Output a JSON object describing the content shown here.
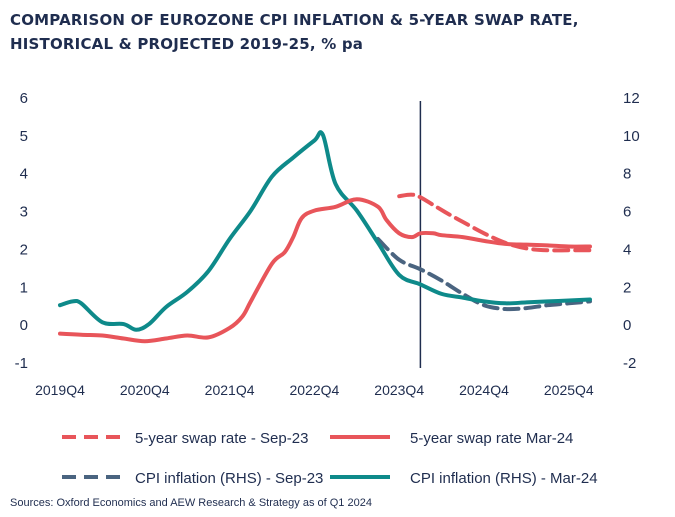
{
  "title": "COMPARISON OF EUROZONE CPI INFLATION & 5-YEAR SWAP RATE, HISTORICAL & PROJECTED 2019-25, % pa",
  "source": "Sources: Oxford Economics and AEW Research & Strategy as of Q1 2024",
  "colors": {
    "swap": "#e8555a",
    "cpi": "#0e8a8a",
    "cpi_dashed": "#4a6480",
    "axis": "#1f2d4f"
  },
  "chart_data": {
    "type": "line",
    "title": "COMPARISON OF EUROZONE CPI INFLATION & 5-YEAR SWAP RATE, HISTORICAL & PROJECTED 2019-25, % pa",
    "x_ticks": [
      "2019Q4",
      "2020Q4",
      "2021Q4",
      "2022Q4",
      "2023Q4",
      "2024Q4",
      "2025Q4"
    ],
    "ylim_left": [
      -1,
      6
    ],
    "yticks_left": [
      -1,
      0,
      1,
      2,
      3,
      4,
      5,
      6
    ],
    "ylim_right": [
      -2,
      12
    ],
    "yticks_right": [
      -2,
      0,
      2,
      4,
      6,
      8,
      10,
      12
    ],
    "vertical_line_x": 2024.0,
    "grid": false,
    "legend_position": "bottom",
    "series": [
      {
        "name": "5-year swap rate - Sep-23",
        "axis": "left",
        "style": "dashed",
        "x": [
          2023.75,
          2023.9,
          2024.0,
          2024.15,
          2024.3,
          2024.5,
          2024.75,
          2025.0,
          2025.25,
          2025.5,
          2025.75,
          2026.0
        ],
        "y": [
          3.38,
          3.42,
          3.35,
          3.15,
          2.95,
          2.7,
          2.4,
          2.15,
          2.0,
          1.95,
          1.95,
          1.95
        ]
      },
      {
        "name": "5-year swap rate Mar-24",
        "axis": "left",
        "style": "solid",
        "x": [
          2019.75,
          2020.0,
          2020.25,
          2020.5,
          2020.75,
          2021.0,
          2021.25,
          2021.5,
          2021.75,
          2021.9,
          2022.0,
          2022.25,
          2022.4,
          2022.5,
          2022.6,
          2022.75,
          2023.0,
          2023.25,
          2023.5,
          2023.6,
          2023.75,
          2023.9,
          2024.0,
          2024.15,
          2024.25,
          2024.5,
          2024.75,
          2025.0,
          2025.25,
          2025.5,
          2025.75,
          2026.0
        ],
        "y": [
          -0.25,
          -0.28,
          -0.3,
          -0.38,
          -0.45,
          -0.38,
          -0.3,
          -0.35,
          -0.1,
          0.2,
          0.6,
          1.6,
          1.9,
          2.3,
          2.8,
          3.0,
          3.1,
          3.3,
          3.1,
          2.75,
          2.4,
          2.3,
          2.4,
          2.4,
          2.35,
          2.3,
          2.2,
          2.12,
          2.1,
          2.08,
          2.05,
          2.05
        ]
      },
      {
        "name": "CPI inflation (RHS) - Sep-23",
        "axis": "right",
        "style": "dashed",
        "x": [
          2023.5,
          2023.75,
          2024.0,
          2024.25,
          2024.5,
          2024.75,
          2025.0,
          2025.25,
          2025.5,
          2025.75,
          2026.0
        ],
        "y": [
          4.5,
          3.4,
          2.9,
          2.3,
          1.6,
          1.0,
          0.8,
          0.85,
          1.0,
          1.1,
          1.2
        ]
      },
      {
        "name": "CPI inflation (RHS) - Mar-24",
        "axis": "right",
        "style": "solid",
        "x": [
          2019.75,
          2019.9,
          2020.0,
          2020.25,
          2020.5,
          2020.65,
          2020.8,
          2021.0,
          2021.25,
          2021.5,
          2021.75,
          2022.0,
          2022.25,
          2022.5,
          2022.75,
          2022.85,
          2023.0,
          2023.25,
          2023.5,
          2023.75,
          2024.0,
          2024.25,
          2024.5,
          2024.75,
          2025.0,
          2025.25,
          2025.5,
          2025.75,
          2026.0
        ],
        "y": [
          1.0,
          1.2,
          1.1,
          0.1,
          0.0,
          -0.3,
          0.0,
          0.9,
          1.7,
          2.8,
          4.5,
          6.0,
          7.8,
          8.8,
          9.7,
          10.0,
          7.4,
          6.0,
          4.3,
          2.6,
          2.1,
          1.6,
          1.4,
          1.2,
          1.1,
          1.15,
          1.2,
          1.25,
          1.3
        ]
      }
    ]
  }
}
